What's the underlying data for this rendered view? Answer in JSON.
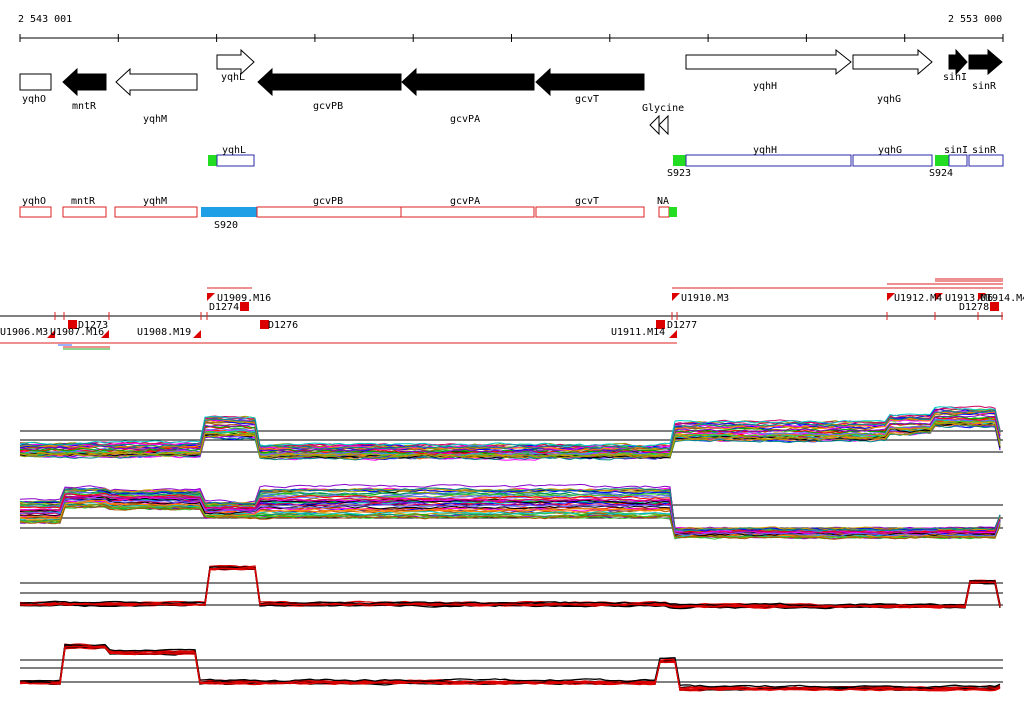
{
  "ruler": {
    "start_label": "2 543 001",
    "end_label": "2 553 000"
  },
  "genes": [
    {
      "name": "yqhO",
      "strand": "none",
      "filled": false
    },
    {
      "name": "mntR",
      "strand": "reverse",
      "filled": true
    },
    {
      "name": "yqhM",
      "strand": "reverse",
      "filled": false
    },
    {
      "name": "yqhL",
      "strand": "forward",
      "filled": false
    },
    {
      "name": "gcvPB",
      "strand": "reverse",
      "filled": true
    },
    {
      "name": "gcvPA",
      "strand": "reverse",
      "filled": true
    },
    {
      "name": "gcvT",
      "strand": "reverse",
      "filled": true
    },
    {
      "name": "yqhH",
      "strand": "forward",
      "filled": false
    },
    {
      "name": "yqhG",
      "strand": "forward",
      "filled": false
    },
    {
      "name": "sinI",
      "strand": "forward",
      "filled": true
    },
    {
      "name": "sinR",
      "strand": "forward",
      "filled": true
    }
  ],
  "riboswitch": {
    "label": "Glycine"
  },
  "operons_forward": {
    "color": "#2a2aa8",
    "start_color": "#22dd22",
    "genes": [
      "yqhL",
      "yqhH",
      "yqhG",
      "sinI",
      "sinR"
    ],
    "sites": [
      "S923",
      "S924"
    ]
  },
  "operons_reverse": {
    "color": "#dd2222",
    "highlight_color": "#1e9fe6",
    "genes": [
      "yqhO",
      "mntR",
      "yqhM",
      "gcvPB",
      "gcvPA",
      "gcvT",
      "NA"
    ],
    "sites": [
      "S920"
    ]
  },
  "segments": {
    "upper": [
      "U1909.M16",
      "D1274",
      "U1910.M3",
      "U1912.M4",
      "U1913.M6",
      "U1914.M4",
      "D1278"
    ],
    "lower": [
      "U1906.M3",
      "U1907.M16",
      "D1273",
      "U1908.M19",
      "D1276",
      "U1911.M14",
      "D1277"
    ]
  },
  "tracks": [
    {
      "kind": "multi"
    },
    {
      "kind": "multi"
    },
    {
      "kind": "pair"
    },
    {
      "kind": "pair"
    }
  ],
  "colors": {
    "track_red": "#dd0000",
    "track_black": "#000000"
  }
}
